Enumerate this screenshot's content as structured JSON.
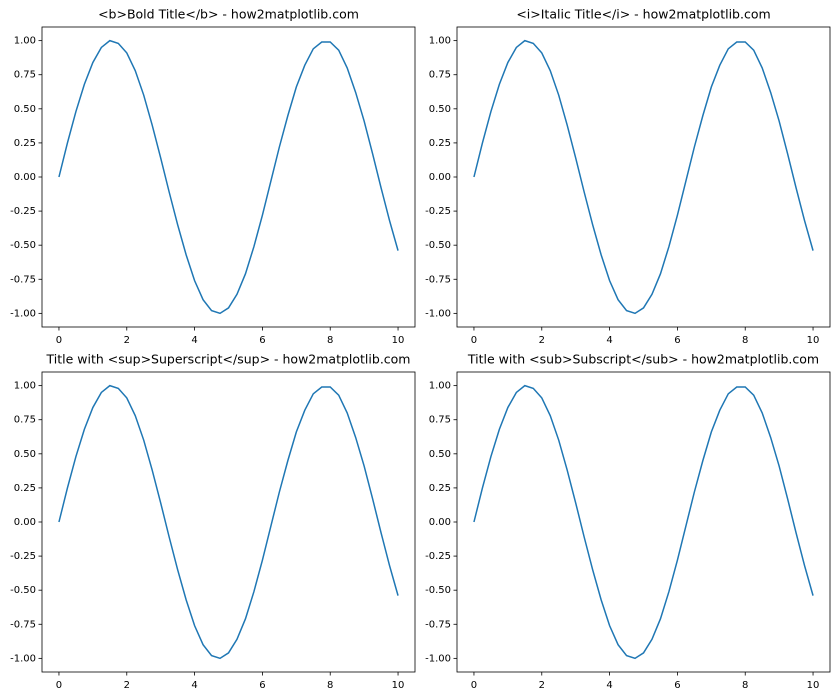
{
  "chart_data": [
    {
      "type": "line",
      "title": "<b>Bold Title</b> - how2matplotlib.com",
      "color": "#1f77b4",
      "x": [
        0,
        0.25,
        0.5,
        0.75,
        1,
        1.25,
        1.5,
        1.75,
        2,
        2.25,
        2.5,
        2.75,
        3,
        3.25,
        3.5,
        3.75,
        4,
        4.25,
        4.5,
        4.75,
        5,
        5.25,
        5.5,
        5.75,
        6,
        6.25,
        6.5,
        6.75,
        7,
        7.25,
        7.5,
        7.75,
        8,
        8.25,
        8.5,
        8.75,
        9,
        9.25,
        9.5,
        9.75,
        10
      ],
      "values": [
        0,
        0.25,
        0.48,
        0.68,
        0.84,
        0.95,
        1.0,
        0.98,
        0.91,
        0.78,
        0.6,
        0.38,
        0.14,
        -0.11,
        -0.35,
        -0.57,
        -0.76,
        -0.9,
        -0.98,
        -1.0,
        -0.96,
        -0.86,
        -0.71,
        -0.51,
        -0.28,
        -0.03,
        0.22,
        0.45,
        0.66,
        0.82,
        0.94,
        0.99,
        0.99,
        0.93,
        0.8,
        0.62,
        0.41,
        0.17,
        -0.08,
        -0.32,
        -0.54
      ],
      "xlim": [
        -0.5,
        10.5
      ],
      "xticks": [
        0,
        2,
        4,
        6,
        8,
        10
      ],
      "ylim": [
        -1.1,
        1.1
      ],
      "yticks": [
        {
          "value": -1,
          "label": "-1.00"
        },
        {
          "value": -0.75,
          "label": "-0.75"
        },
        {
          "value": -0.5,
          "label": "-0.50"
        },
        {
          "value": -0.25,
          "label": "-0.25"
        },
        {
          "value": 0,
          "label": "0.00"
        },
        {
          "value": 0.25,
          "label": "0.25"
        },
        {
          "value": 0.5,
          "label": "0.50"
        },
        {
          "value": 0.75,
          "label": "0.75"
        },
        {
          "value": 1,
          "label": "1.00"
        }
      ]
    },
    {
      "type": "line",
      "title": "<i>Italic Title</i> - how2matplotlib.com",
      "color": "#1f77b4",
      "x": [
        0,
        0.25,
        0.5,
        0.75,
        1,
        1.25,
        1.5,
        1.75,
        2,
        2.25,
        2.5,
        2.75,
        3,
        3.25,
        3.5,
        3.75,
        4,
        4.25,
        4.5,
        4.75,
        5,
        5.25,
        5.5,
        5.75,
        6,
        6.25,
        6.5,
        6.75,
        7,
        7.25,
        7.5,
        7.75,
        8,
        8.25,
        8.5,
        8.75,
        9,
        9.25,
        9.5,
        9.75,
        10
      ],
      "values": [
        0,
        0.25,
        0.48,
        0.68,
        0.84,
        0.95,
        1.0,
        0.98,
        0.91,
        0.78,
        0.6,
        0.38,
        0.14,
        -0.11,
        -0.35,
        -0.57,
        -0.76,
        -0.9,
        -0.98,
        -1.0,
        -0.96,
        -0.86,
        -0.71,
        -0.51,
        -0.28,
        -0.03,
        0.22,
        0.45,
        0.66,
        0.82,
        0.94,
        0.99,
        0.99,
        0.93,
        0.8,
        0.62,
        0.41,
        0.17,
        -0.08,
        -0.32,
        -0.54
      ],
      "xlim": [
        -0.5,
        10.5
      ],
      "xticks": [
        0,
        2,
        4,
        6,
        8,
        10
      ],
      "ylim": [
        -1.1,
        1.1
      ],
      "yticks": [
        {
          "value": -1,
          "label": "-1.00"
        },
        {
          "value": -0.75,
          "label": "-0.75"
        },
        {
          "value": -0.5,
          "label": "-0.50"
        },
        {
          "value": -0.25,
          "label": "-0.25"
        },
        {
          "value": 0,
          "label": "0.00"
        },
        {
          "value": 0.25,
          "label": "0.25"
        },
        {
          "value": 0.5,
          "label": "0.50"
        },
        {
          "value": 0.75,
          "label": "0.75"
        },
        {
          "value": 1,
          "label": "1.00"
        }
      ]
    },
    {
      "type": "line",
      "title": "Title with <sup>Superscript</sup> - how2matplotlib.com",
      "color": "#1f77b4",
      "x": [
        0,
        0.25,
        0.5,
        0.75,
        1,
        1.25,
        1.5,
        1.75,
        2,
        2.25,
        2.5,
        2.75,
        3,
        3.25,
        3.5,
        3.75,
        4,
        4.25,
        4.5,
        4.75,
        5,
        5.25,
        5.5,
        5.75,
        6,
        6.25,
        6.5,
        6.75,
        7,
        7.25,
        7.5,
        7.75,
        8,
        8.25,
        8.5,
        8.75,
        9,
        9.25,
        9.5,
        9.75,
        10
      ],
      "values": [
        0,
        0.25,
        0.48,
        0.68,
        0.84,
        0.95,
        1.0,
        0.98,
        0.91,
        0.78,
        0.6,
        0.38,
        0.14,
        -0.11,
        -0.35,
        -0.57,
        -0.76,
        -0.9,
        -0.98,
        -1.0,
        -0.96,
        -0.86,
        -0.71,
        -0.51,
        -0.28,
        -0.03,
        0.22,
        0.45,
        0.66,
        0.82,
        0.94,
        0.99,
        0.99,
        0.93,
        0.8,
        0.62,
        0.41,
        0.17,
        -0.08,
        -0.32,
        -0.54
      ],
      "xlim": [
        -0.5,
        10.5
      ],
      "xticks": [
        0,
        2,
        4,
        6,
        8,
        10
      ],
      "ylim": [
        -1.1,
        1.1
      ],
      "yticks": [
        {
          "value": -1,
          "label": "-1.00"
        },
        {
          "value": -0.75,
          "label": "-0.75"
        },
        {
          "value": -0.5,
          "label": "-0.50"
        },
        {
          "value": -0.25,
          "label": "-0.25"
        },
        {
          "value": 0,
          "label": "0.00"
        },
        {
          "value": 0.25,
          "label": "0.25"
        },
        {
          "value": 0.5,
          "label": "0.50"
        },
        {
          "value": 0.75,
          "label": "0.75"
        },
        {
          "value": 1,
          "label": "1.00"
        }
      ]
    },
    {
      "type": "line",
      "title": "Title with <sub>Subscript</sub> - how2matplotlib.com",
      "color": "#1f77b4",
      "x": [
        0,
        0.25,
        0.5,
        0.75,
        1,
        1.25,
        1.5,
        1.75,
        2,
        2.25,
        2.5,
        2.75,
        3,
        3.25,
        3.5,
        3.75,
        4,
        4.25,
        4.5,
        4.75,
        5,
        5.25,
        5.5,
        5.75,
        6,
        6.25,
        6.5,
        6.75,
        7,
        7.25,
        7.5,
        7.75,
        8,
        8.25,
        8.5,
        8.75,
        9,
        9.25,
        9.5,
        9.75,
        10
      ],
      "values": [
        0,
        0.25,
        0.48,
        0.68,
        0.84,
        0.95,
        1.0,
        0.98,
        0.91,
        0.78,
        0.6,
        0.38,
        0.14,
        -0.11,
        -0.35,
        -0.57,
        -0.76,
        -0.9,
        -0.98,
        -1.0,
        -0.96,
        -0.86,
        -0.71,
        -0.51,
        -0.28,
        -0.03,
        0.22,
        0.45,
        0.66,
        0.82,
        0.94,
        0.99,
        0.99,
        0.93,
        0.8,
        0.62,
        0.41,
        0.17,
        -0.08,
        -0.32,
        -0.54
      ],
      "xlim": [
        -0.5,
        10.5
      ],
      "xticks": [
        0,
        2,
        4,
        6,
        8,
        10
      ],
      "ylim": [
        -1.1,
        1.1
      ],
      "yticks": [
        {
          "value": -1,
          "label": "-1.00"
        },
        {
          "value": -0.75,
          "label": "-0.75"
        },
        {
          "value": -0.5,
          "label": "-0.50"
        },
        {
          "value": -0.25,
          "label": "-0.25"
        },
        {
          "value": 0,
          "label": "0.00"
        },
        {
          "value": 0.25,
          "label": "0.25"
        },
        {
          "value": 0.5,
          "label": "0.50"
        },
        {
          "value": 0.75,
          "label": "0.75"
        },
        {
          "value": 1,
          "label": "1.00"
        }
      ]
    }
  ]
}
